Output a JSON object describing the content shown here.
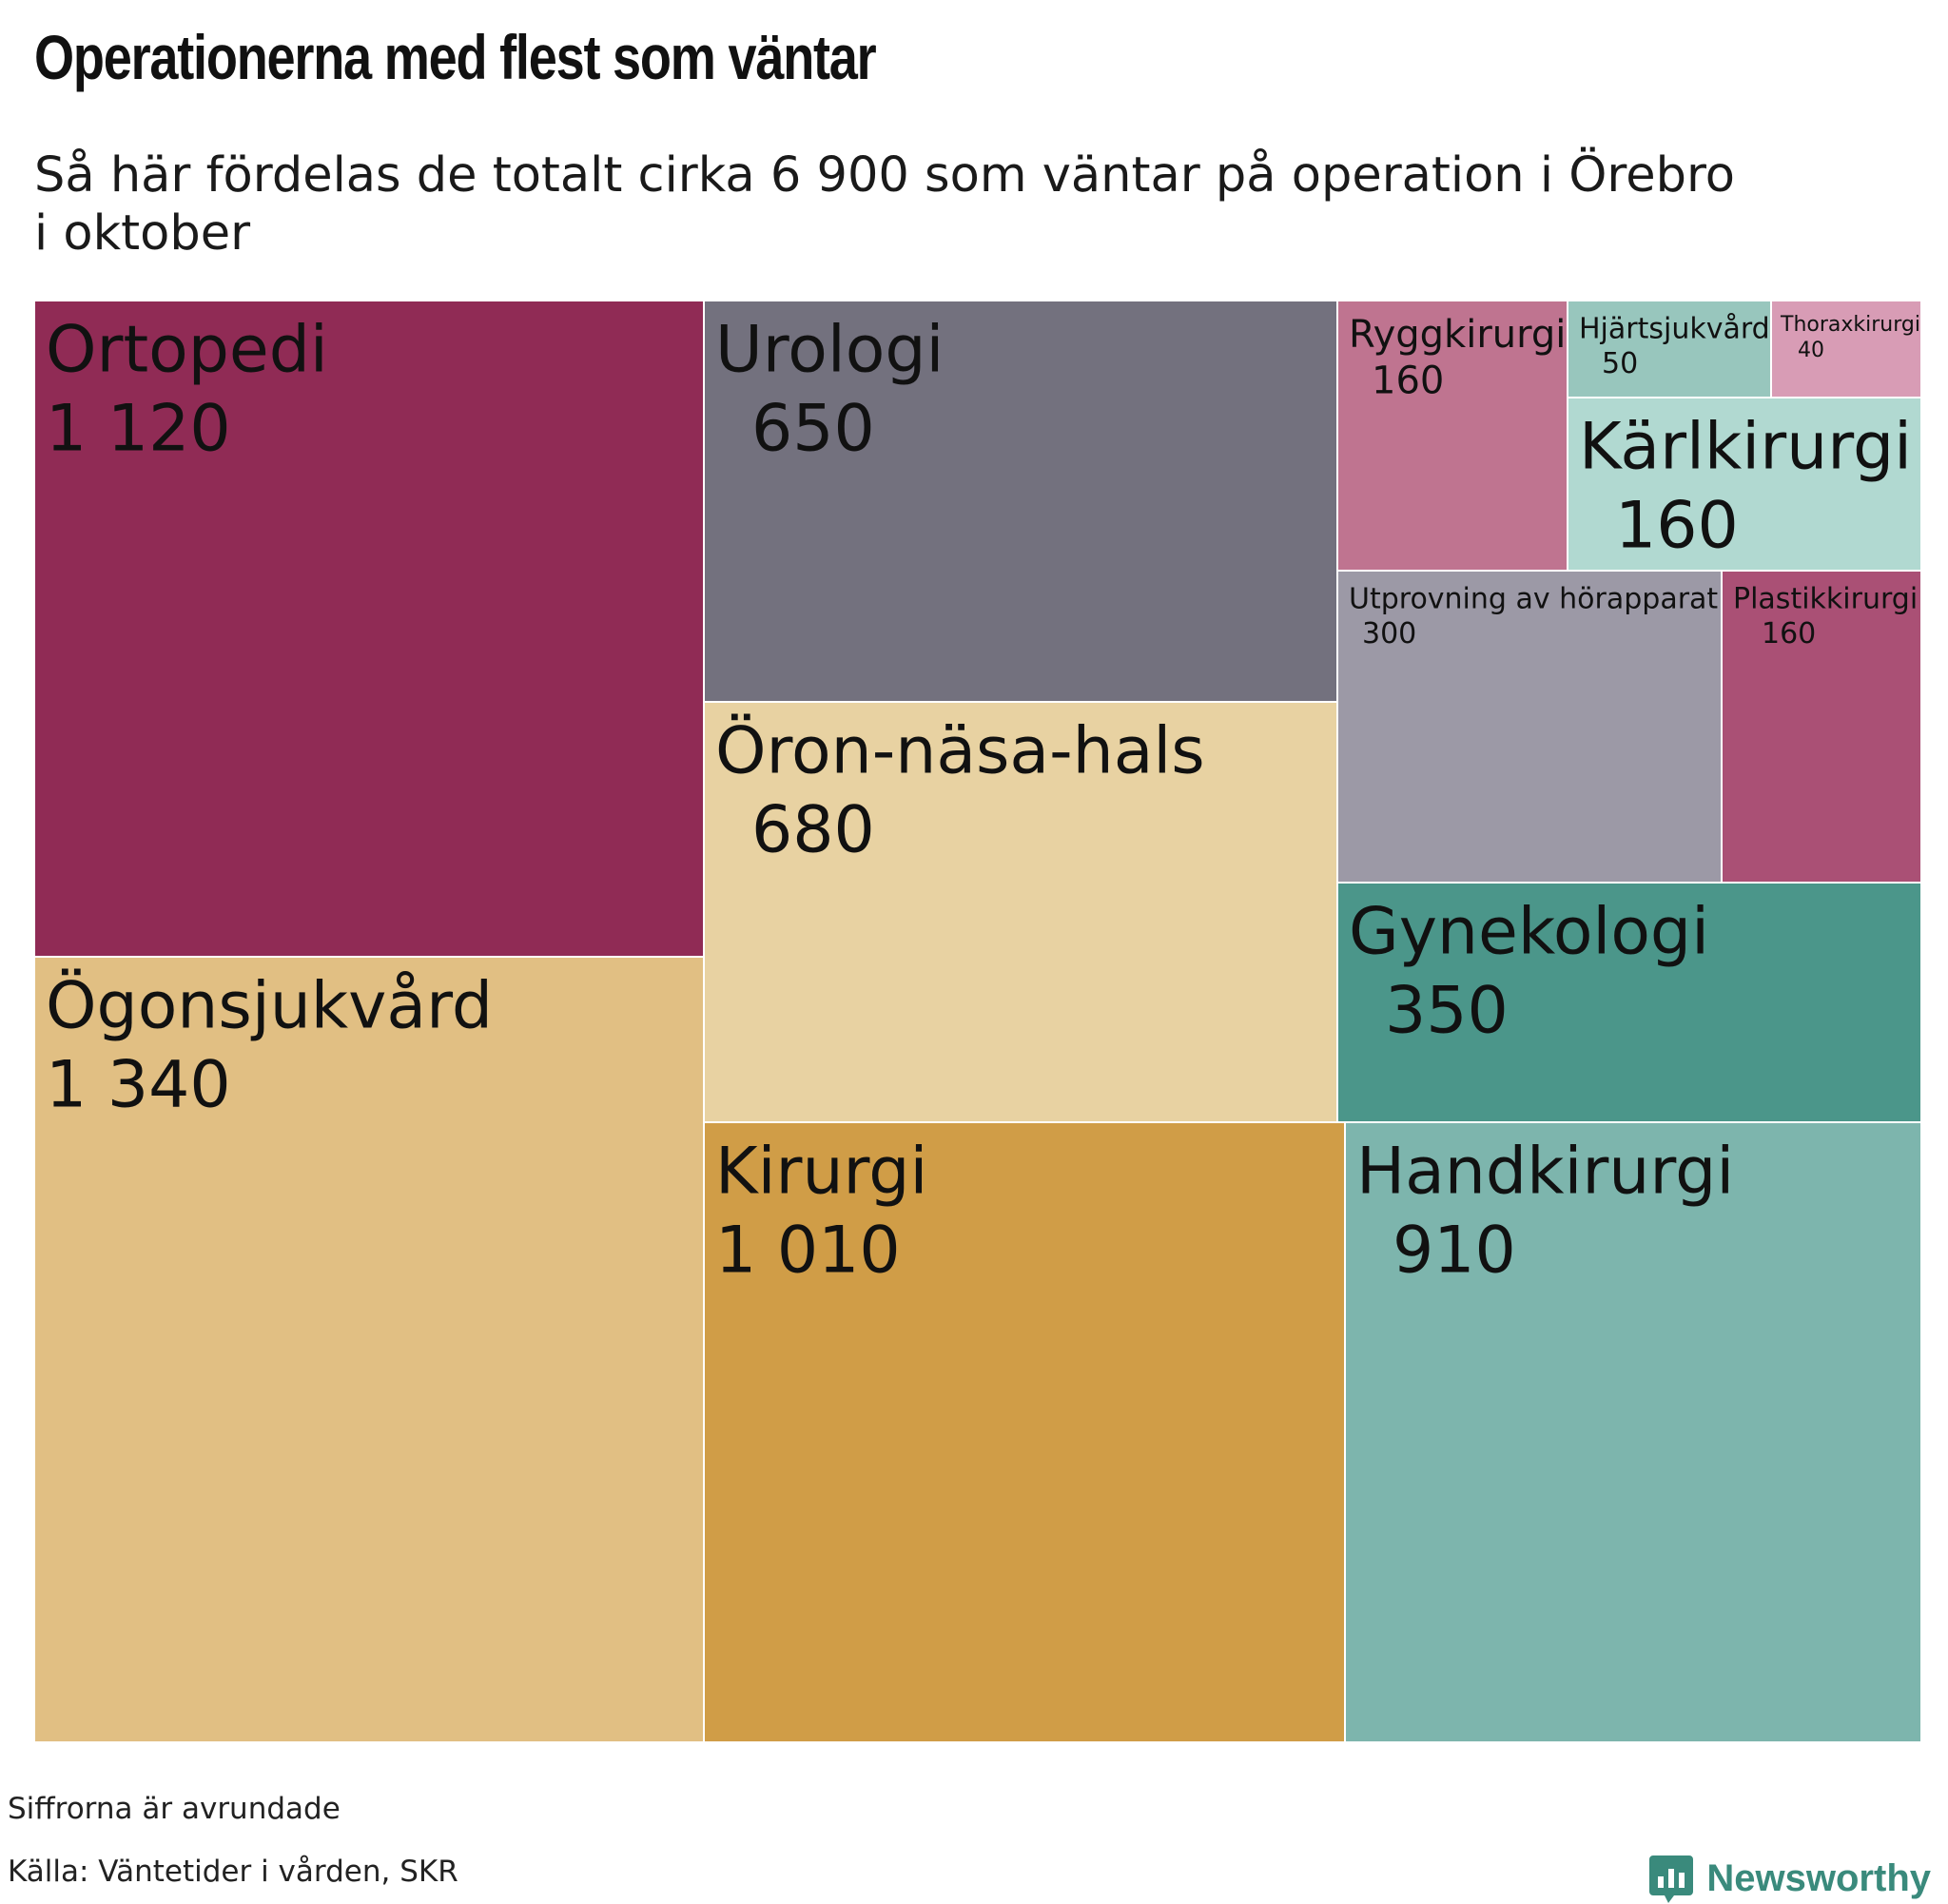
{
  "title": "Operationerna med flest som väntar",
  "subtitle": "Så här fördelas de totalt cirka 6 900 som väntar på operation i Örebro i oktober",
  "footer": {
    "note": "Siffrorna är avrundade",
    "source": "Källa: Väntetider i vården, SKR"
  },
  "brand": {
    "name": "Newsworthy",
    "icon": "newsworthy-logo-icon",
    "color": "#3a8a7c"
  },
  "chart_data": {
    "type": "treemap",
    "total_stated": "cirka 6 900",
    "items": [
      {
        "name": "Ortopedi",
        "value": 1120,
        "label": "1 120",
        "color": "#902b55"
      },
      {
        "name": "Ögonsjukvård",
        "value": 1340,
        "label": "1 340",
        "color": "#e1bf83"
      },
      {
        "name": "Urologi",
        "value": 650,
        "label": "650",
        "color": "#73717e"
      },
      {
        "name": "Öron-näsa-hals",
        "value": 680,
        "label": "680",
        "color": "#e8d2a2"
      },
      {
        "name": "Kirurgi",
        "value": 1010,
        "label": "1 010",
        "color": "#d09d47"
      },
      {
        "name": "Ryggkirurgi",
        "value": 160,
        "label": "160",
        "color": "#bf7490"
      },
      {
        "name": "Hjärtsjukvård",
        "value": 50,
        "label": "50",
        "color": "#98c6bd"
      },
      {
        "name": "Thoraxkirurgi",
        "value": 40,
        "label": "40",
        "color": "#d89cb5"
      },
      {
        "name": "Kärlkirurgi",
        "value": 160,
        "label": "160",
        "color": "#b1d9d1"
      },
      {
        "name": "Utprovning av hörapparat",
        "value": 300,
        "label": "300",
        "color": "#9c99a6"
      },
      {
        "name": "Plastikkirurgi",
        "value": 160,
        "label": "160",
        "color": "#aa5075"
      },
      {
        "name": "Gynekologi",
        "value": 350,
        "label": "350",
        "color": "#4b968a"
      },
      {
        "name": "Handkirurgi",
        "value": 910,
        "label": "910",
        "color": "#7db5ad"
      }
    ]
  }
}
